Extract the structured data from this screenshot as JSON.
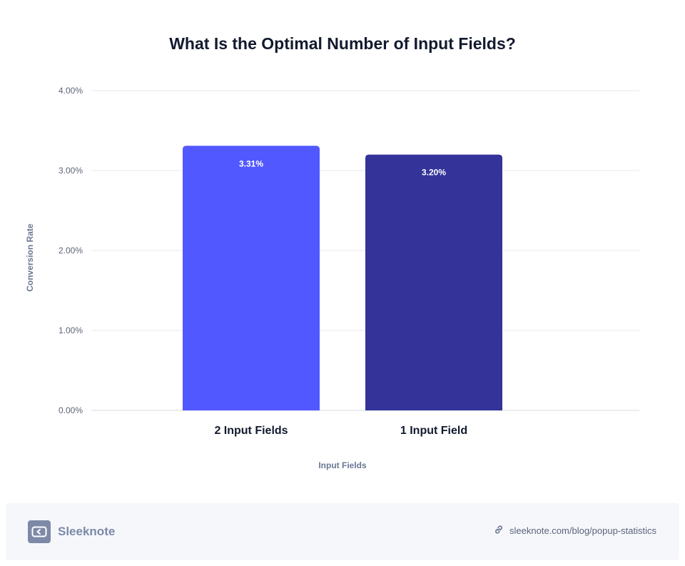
{
  "chart_data": {
    "type": "bar",
    "title": "What Is the Optimal Number of Input Fields?",
    "categories": [
      "2 Input Fields",
      "1 Input Field"
    ],
    "values": [
      3.31,
      3.2
    ],
    "value_labels": [
      "3.31%",
      "3.20%"
    ],
    "colors": [
      "#5258ff",
      "#333399"
    ],
    "xlabel": "Input Fields",
    "ylabel": "Conversion Rate",
    "ylim": [
      0,
      4
    ],
    "yticks": [
      0,
      1,
      2,
      3,
      4
    ],
    "ytick_labels": [
      "0.00%",
      "1.00%",
      "2.00%",
      "3.00%",
      "4.00%"
    ],
    "grid": true,
    "legend": "none"
  },
  "footer": {
    "brand": "Sleeknote",
    "source": "sleeknote.com/blog/popup-statistics",
    "link_icon": "link-icon",
    "logo_icon": "sleeknote-logo-icon"
  }
}
